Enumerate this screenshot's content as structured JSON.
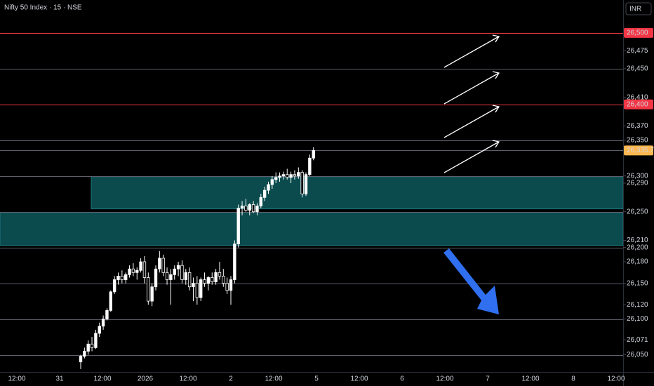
{
  "header": {
    "symbol": "Nifty 50 Index · 15 · NSE",
    "currency": "INR"
  },
  "chart_data": {
    "type": "candlestick",
    "up_color": "#ffffff",
    "down_color": "#000000",
    "zone_color": "#0b4a4d",
    "ylim": [
      26026,
      26546
    ],
    "yticks": [
      {
        "value": 26500,
        "label": "26,500",
        "color": "#f23645"
      },
      {
        "value": 26475,
        "label": "26,475"
      },
      {
        "value": 26450,
        "label": "26,450"
      },
      {
        "value": 26410,
        "label": "26,410"
      },
      {
        "value": 26400,
        "label": "26,400",
        "color": "#f23645"
      },
      {
        "value": 26370,
        "label": "26,370"
      },
      {
        "value": 26350,
        "label": "26,350"
      },
      {
        "value": 26335.7,
        "label": "26,335.70",
        "color": "#ffb74d"
      },
      {
        "value": 26300,
        "label": "26,300"
      },
      {
        "value": 26290,
        "label": "26,290"
      },
      {
        "value": 26250,
        "label": "26,250"
      },
      {
        "value": 26210,
        "label": "26,210"
      },
      {
        "value": 26200,
        "label": "26,200"
      },
      {
        "value": 26180,
        "label": "26,180"
      },
      {
        "value": 26150,
        "label": "26,150"
      },
      {
        "value": 26120,
        "label": "26,120"
      },
      {
        "value": 26100,
        "label": "26,100"
      },
      {
        "value": 26071,
        "label": "26,071"
      },
      {
        "value": 26050,
        "label": "26,050"
      }
    ],
    "levels": [
      {
        "value": 26500,
        "color": "#f23645"
      },
      {
        "value": 26450,
        "color": "#5d606b"
      },
      {
        "value": 26400,
        "color": "#f23645"
      },
      {
        "value": 26350,
        "color": "#5d606b"
      },
      {
        "value": 26335.7,
        "color": "#5d606b"
      },
      {
        "value": 26300,
        "color": "#5d606b"
      },
      {
        "value": 26250,
        "color": "#5d606b"
      },
      {
        "value": 26200,
        "color": "#5d606b"
      },
      {
        "value": 26150,
        "color": "#5d606b"
      },
      {
        "value": 26100,
        "color": "#5d606b"
      },
      {
        "value": 26050,
        "color": "#5d606b"
      }
    ],
    "zones": [
      [
        26299,
        26254
      ],
      [
        26249,
        26203
      ]
    ],
    "categories": [
      "12:00",
      "31",
      "12:00",
      "2026",
      "12:00",
      "2",
      "12:00",
      "5",
      "12:00",
      "6",
      "12:00",
      "7",
      "12:00",
      "8",
      "12:00"
    ],
    "ohlc": [
      [
        26040,
        26050,
        26030,
        26048
      ],
      [
        26048,
        26060,
        26045,
        26055
      ],
      [
        26055,
        26070,
        26050,
        26065
      ],
      [
        26065,
        26075,
        26055,
        26060
      ],
      [
        26060,
        26085,
        26058,
        26080
      ],
      [
        26080,
        26095,
        26075,
        26090
      ],
      [
        26090,
        26105,
        26085,
        26100
      ],
      [
        26100,
        26115,
        26098,
        26112
      ],
      [
        26112,
        26140,
        26110,
        26138
      ],
      [
        26138,
        26160,
        26135,
        26155
      ],
      [
        26155,
        26165,
        26148,
        26160
      ],
      [
        26160,
        26168,
        26150,
        26155
      ],
      [
        26155,
        26165,
        26150,
        26162
      ],
      [
        26162,
        26175,
        26158,
        26170
      ],
      [
        26170,
        26178,
        26160,
        26165
      ],
      [
        26165,
        26172,
        26155,
        26168
      ],
      [
        26168,
        26185,
        26165,
        26180
      ],
      [
        26180,
        26188,
        26150,
        26158
      ],
      [
        26158,
        26165,
        26120,
        26125
      ],
      [
        26125,
        26150,
        26118,
        26145
      ],
      [
        26145,
        26175,
        26140,
        26170
      ],
      [
        26170,
        26195,
        26165,
        26185
      ],
      [
        26185,
        26190,
        26160,
        26165
      ],
      [
        26165,
        26172,
        26148,
        26155
      ],
      [
        26155,
        26170,
        26120,
        26162
      ],
      [
        26162,
        26175,
        26155,
        26170
      ],
      [
        26170,
        26180,
        26160,
        26175
      ],
      [
        26175,
        26182,
        26150,
        26155
      ],
      [
        26155,
        26170,
        26148,
        26165
      ],
      [
        26165,
        26172,
        26140,
        26145
      ],
      [
        26145,
        26158,
        26125,
        26150
      ],
      [
        26150,
        26160,
        26120,
        26130
      ],
      [
        26130,
        26158,
        26125,
        26155
      ],
      [
        26155,
        26165,
        26145,
        26150
      ],
      [
        26150,
        26160,
        26140,
        26158
      ],
      [
        26158,
        26165,
        26148,
        26152
      ],
      [
        26152,
        26170,
        26148,
        26165
      ],
      [
        26165,
        26180,
        26155,
        26160
      ],
      [
        26160,
        26170,
        26145,
        26150
      ],
      [
        26150,
        26158,
        26135,
        26140
      ],
      [
        26140,
        26160,
        26120,
        26155
      ],
      [
        26155,
        26210,
        26150,
        26205
      ],
      [
        26205,
        26260,
        26200,
        26255
      ],
      [
        26255,
        26265,
        26245,
        26258
      ],
      [
        26258,
        26268,
        26250,
        26252
      ],
      [
        26252,
        26262,
        26245,
        26260
      ],
      [
        26260,
        26265,
        26248,
        26250
      ],
      [
        26250,
        26262,
        26245,
        26258
      ],
      [
        26258,
        26275,
        26255,
        26270
      ],
      [
        26270,
        26285,
        26265,
        26280
      ],
      [
        26280,
        26292,
        26275,
        26288
      ],
      [
        26288,
        26300,
        26282,
        26295
      ],
      [
        26295,
        26305,
        26290,
        26298
      ],
      [
        26298,
        26305,
        26292,
        26300
      ],
      [
        26300,
        26306,
        26295,
        26302
      ],
      [
        26302,
        26310,
        26295,
        26298
      ],
      [
        26298,
        26306,
        26290,
        26302
      ],
      [
        26302,
        26308,
        26295,
        26300
      ],
      [
        26300,
        26312,
        26296,
        26305
      ],
      [
        26305,
        26308,
        26270,
        26275
      ],
      [
        26275,
        26305,
        26272,
        26302
      ],
      [
        26302,
        26330,
        26300,
        26325
      ],
      [
        26325,
        26340,
        26322,
        26335.7
      ]
    ]
  }
}
